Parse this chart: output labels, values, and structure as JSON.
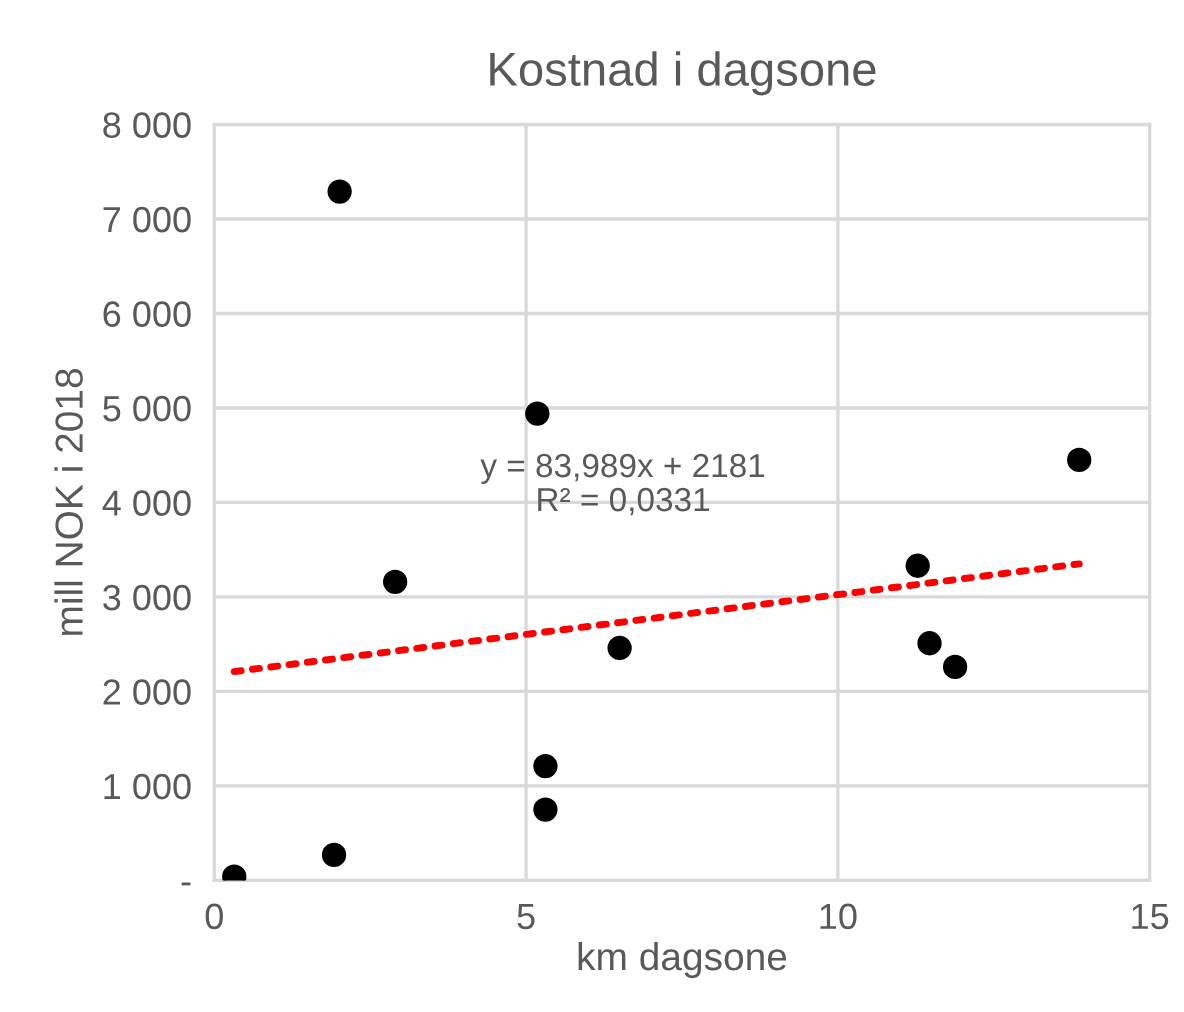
{
  "chart_data": {
    "type": "scatter",
    "title": "Kostnad i dagsone",
    "xlabel": "km dagsone",
    "ylabel": "mill NOK i 2018",
    "xlim": [
      0,
      15
    ],
    "xticks": [
      0,
      5,
      10,
      15
    ],
    "ylim": [
      0,
      8000
    ],
    "yticks": [
      {
        "value": 0,
        "label": "-"
      },
      {
        "value": 1000,
        "label": "1 000"
      },
      {
        "value": 2000,
        "label": "2 000"
      },
      {
        "value": 3000,
        "label": "3 000"
      },
      {
        "value": 4000,
        "label": "4 000"
      },
      {
        "value": 5000,
        "label": "5 000"
      },
      {
        "value": 6000,
        "label": "6 000"
      },
      {
        "value": 7000,
        "label": "7 000"
      },
      {
        "value": 8000,
        "label": "8 000"
      }
    ],
    "grid": true,
    "marker": "circle",
    "series": [
      {
        "color": "#000000",
        "x": [
          2.01,
          5.18,
          2.9,
          6.5,
          5.31,
          5.31,
          1.92,
          0.32,
          13.87,
          11.28,
          11.47,
          11.88
        ],
        "values": [
          7290,
          4940,
          3160,
          2460,
          1210,
          750,
          270,
          40,
          4450,
          3330,
          2510,
          2260
        ]
      },
      {
        "type": "line",
        "color": "#ff0000",
        "line_style": "dotted",
        "marker": "none",
        "x": [
          0.32,
          13.87
        ],
        "values": [
          2210,
          3350
        ]
      }
    ],
    "annotations": [
      "y = 83,989x + 2181",
      "R² = 0,0331"
    ]
  }
}
